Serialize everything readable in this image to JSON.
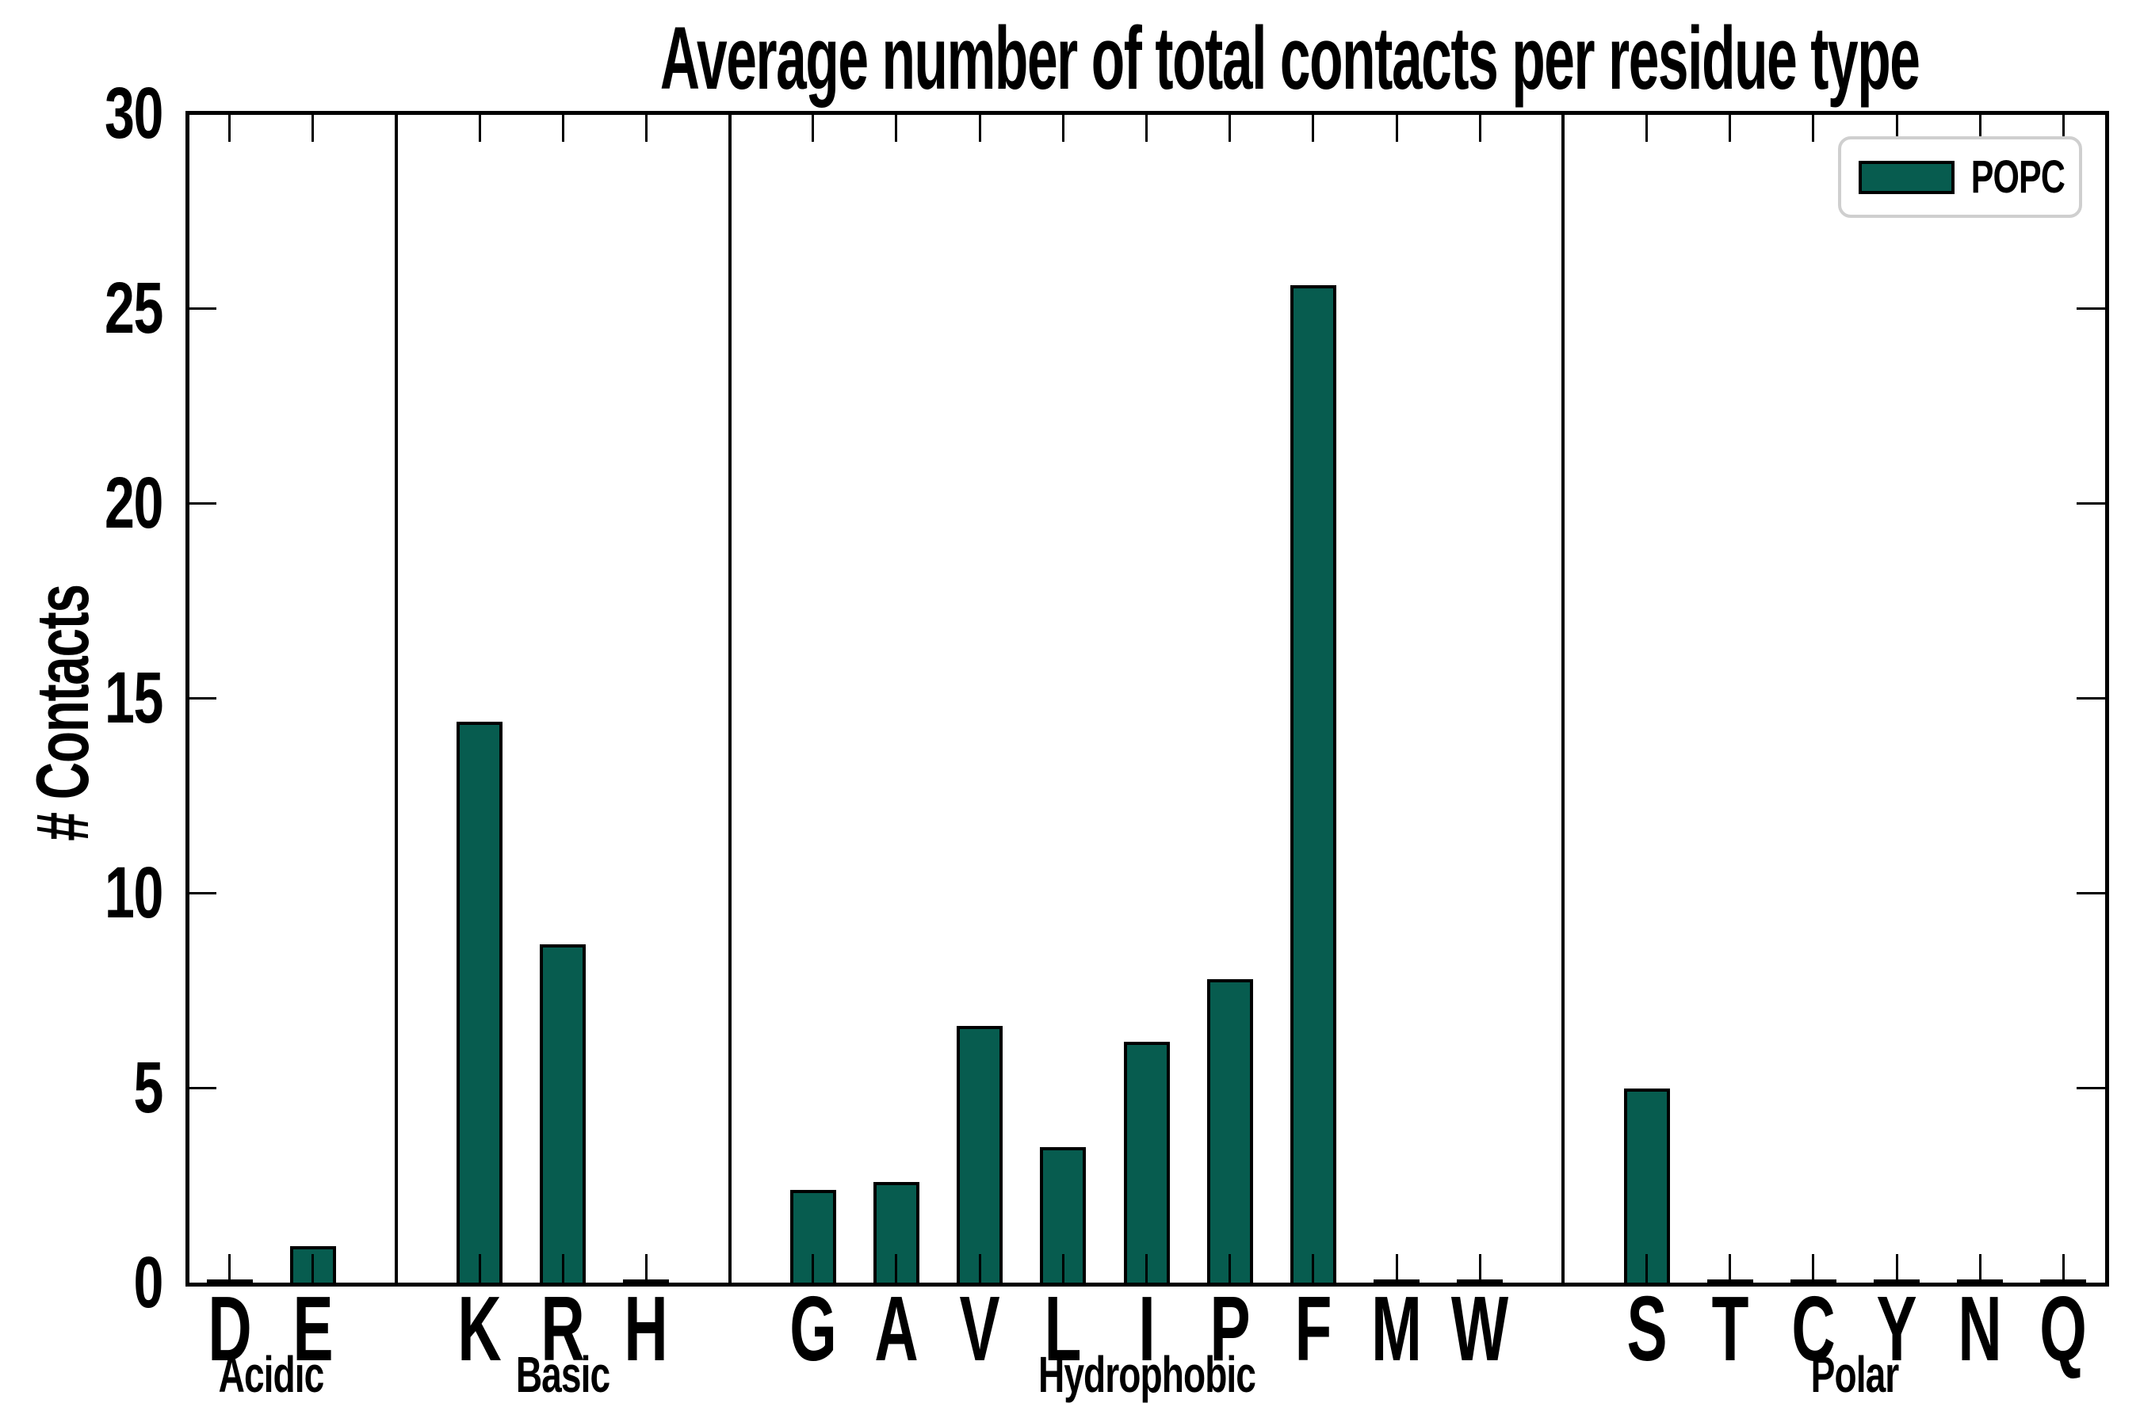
{
  "chart_data": {
    "type": "bar",
    "title": "Average number of total contacts per residue type",
    "ylabel": "# Contacts",
    "xlabel": "",
    "ylim": [
      0,
      30
    ],
    "yticks": [
      0,
      5,
      10,
      15,
      20,
      25,
      30
    ],
    "grid": false,
    "legend": {
      "label": "POPC",
      "position": "upper right"
    },
    "colors": {
      "bar_fill": "#075c4f",
      "bar_edge": "#000000",
      "axis": "#000000",
      "legend_border": "#cfcfcf",
      "background": "#ffffff"
    },
    "groups": [
      {
        "label": "Acidic",
        "categories": [
          "D",
          "E"
        ],
        "values": [
          0.0,
          0.85
        ]
      },
      {
        "label": "Basic",
        "categories": [
          "K",
          "R",
          "H"
        ],
        "values": [
          14.3,
          8.6,
          0.0
        ]
      },
      {
        "label": "Hydrophobic",
        "categories": [
          "G",
          "A",
          "V",
          "L",
          "I",
          "P",
          "F",
          "M",
          "W"
        ],
        "values": [
          2.3,
          2.5,
          6.5,
          3.4,
          6.1,
          7.7,
          25.5,
          0.0,
          0.0
        ]
      },
      {
        "label": "Polar",
        "categories": [
          "S",
          "T",
          "C",
          "Y",
          "N",
          "Q"
        ],
        "values": [
          4.9,
          0.0,
          0.0,
          0.0,
          0.0,
          0.0
        ]
      }
    ]
  }
}
